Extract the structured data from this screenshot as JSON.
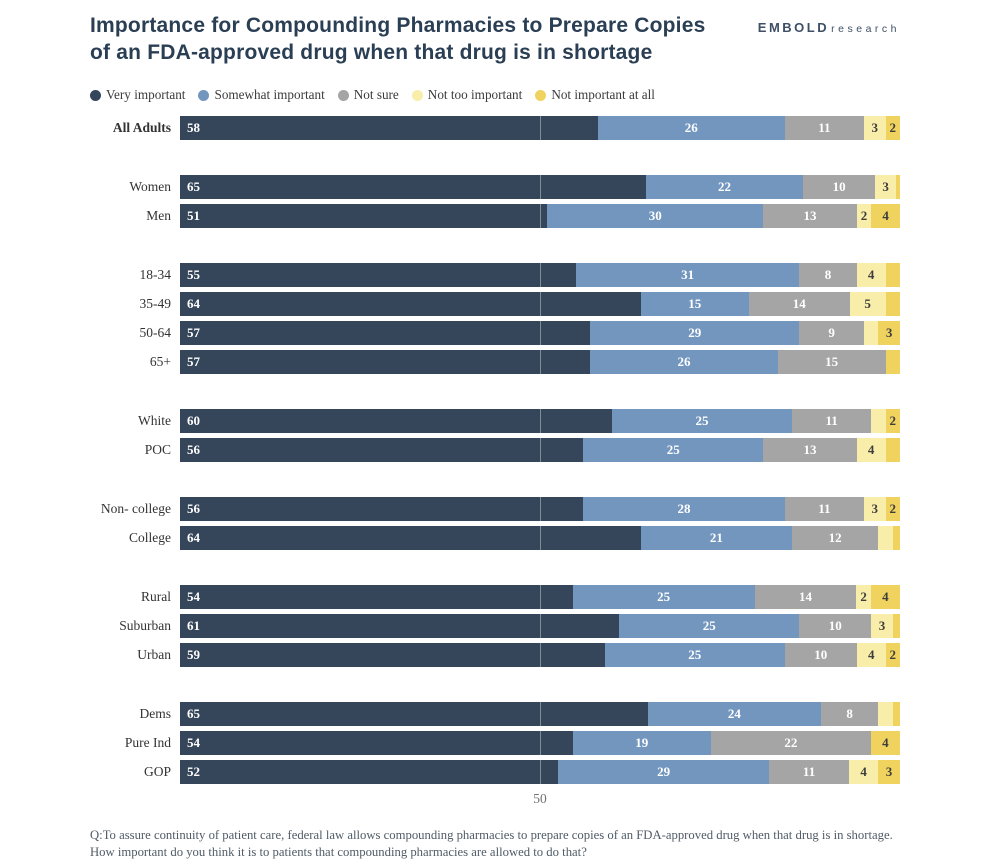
{
  "header": {
    "title_line1": "Importance for Compounding Pharmacies to Prepare Copies",
    "title_line2": "of an FDA-approved drug when that drug is in shortage"
  },
  "logo": {
    "bold": "EMBOLD",
    "light": "research"
  },
  "legend": [
    {
      "label": "Very important",
      "color": "#36465a"
    },
    {
      "label": "Somewhat important",
      "color": "#7396bf"
    },
    {
      "label": "Not sure",
      "color": "#a5a5a5"
    },
    {
      "label": "Not too important",
      "color": "#f9edaa"
    },
    {
      "label": "Not important at all",
      "color": "#f0d35e"
    }
  ],
  "colors": {
    "segment_text_light": "#ffffff",
    "segment_text_dark": "#3d3d3d",
    "gridline": "rgba(255,255,255,0.38)",
    "title": "#2a3e54"
  },
  "axis": {
    "tick_label": "50",
    "tick_value": 50
  },
  "footnote": {
    "line1": "Q:To assure continuity of patient care, federal law allows compounding pharmacies to prepare copies of an FDA-approved drug when that drug is in shortage.",
    "line2": "How important do you think it is to patients that compounding pharmacies are allowed to do that?"
  },
  "chart_data": {
    "type": "bar",
    "orientation": "horizontal",
    "stacked": true,
    "unit": "percent",
    "title": "Importance for Compounding Pharmacies to Prepare Copies of an FDA-approved drug when that drug is in shortage",
    "series_names": [
      "Very important",
      "Somewhat important",
      "Not sure",
      "Not too important",
      "Not important at all"
    ],
    "xlim": [
      0,
      100
    ],
    "x_gridline": 50,
    "legend_position": "top",
    "groups": [
      {
        "rows": [
          {
            "category": "All Adults",
            "bold": true,
            "values": [
              58,
              26,
              11,
              3,
              2
            ],
            "labels": [
              "58",
              "26",
              "11",
              "3",
              "2"
            ]
          }
        ]
      },
      {
        "rows": [
          {
            "category": "Women",
            "bold": false,
            "values": [
              65,
              22,
              10,
              3,
              0.5
            ],
            "labels": [
              "65",
              "22",
              "10",
              "3",
              ""
            ]
          },
          {
            "category": "Men",
            "bold": false,
            "values": [
              51,
              30,
              13,
              2,
              4
            ],
            "labels": [
              "51",
              "30",
              "13",
              "2",
              "4"
            ]
          }
        ]
      },
      {
        "rows": [
          {
            "category": "18-34",
            "bold": false,
            "values": [
              55,
              31,
              8,
              4,
              2
            ],
            "labels": [
              "55",
              "31",
              "8",
              "4",
              ""
            ]
          },
          {
            "category": "35-49",
            "bold": false,
            "values": [
              64,
              15,
              14,
              5,
              2
            ],
            "labels": [
              "64",
              "15",
              "14",
              "5",
              ""
            ]
          },
          {
            "category": "50-64",
            "bold": false,
            "values": [
              57,
              29,
              9,
              2,
              3
            ],
            "labels": [
              "57",
              "29",
              "9",
              "",
              "3"
            ]
          },
          {
            "category": "65+",
            "bold": false,
            "values": [
              57,
              26,
              15,
              0,
              2
            ],
            "labels": [
              "57",
              "26",
              "15",
              "",
              ""
            ]
          }
        ]
      },
      {
        "rows": [
          {
            "category": "White",
            "bold": false,
            "values": [
              60,
              25,
              11,
              2,
              2
            ],
            "labels": [
              "60",
              "25",
              "11",
              "",
              "2"
            ]
          },
          {
            "category": "POC",
            "bold": false,
            "values": [
              56,
              25,
              13,
              4,
              2
            ],
            "labels": [
              "56",
              "25",
              "13",
              "4",
              ""
            ]
          }
        ]
      },
      {
        "rows": [
          {
            "category": "Non- college",
            "bold": false,
            "values": [
              56,
              28,
              11,
              3,
              2
            ],
            "labels": [
              "56",
              "28",
              "11",
              "3",
              "2"
            ]
          },
          {
            "category": "College",
            "bold": false,
            "values": [
              64,
              21,
              12,
              2,
              1
            ],
            "labels": [
              "64",
              "21",
              "12",
              "",
              ""
            ]
          }
        ]
      },
      {
        "rows": [
          {
            "category": "Rural",
            "bold": false,
            "values": [
              54,
              25,
              14,
              2,
              4
            ],
            "labels": [
              "54",
              "25",
              "14",
              "2",
              "4"
            ]
          },
          {
            "category": "Suburban",
            "bold": false,
            "values": [
              61,
              25,
              10,
              3,
              1
            ],
            "labels": [
              "61",
              "25",
              "10",
              "3",
              ""
            ]
          },
          {
            "category": "Urban",
            "bold": false,
            "values": [
              59,
              25,
              10,
              4,
              2
            ],
            "labels": [
              "59",
              "25",
              "10",
              "4",
              "2"
            ]
          }
        ]
      },
      {
        "rows": [
          {
            "category": "Dems",
            "bold": false,
            "values": [
              65,
              24,
              8,
              2,
              1
            ],
            "labels": [
              "65",
              "24",
              "8",
              "",
              ""
            ]
          },
          {
            "category": "Pure Ind",
            "bold": false,
            "values": [
              54,
              19,
              22,
              0,
              4
            ],
            "labels": [
              "54",
              "19",
              "22",
              "",
              "4"
            ]
          },
          {
            "category": "GOP",
            "bold": false,
            "values": [
              52,
              29,
              11,
              4,
              3
            ],
            "labels": [
              "52",
              "29",
              "11",
              "4",
              "3"
            ]
          }
        ]
      }
    ]
  }
}
